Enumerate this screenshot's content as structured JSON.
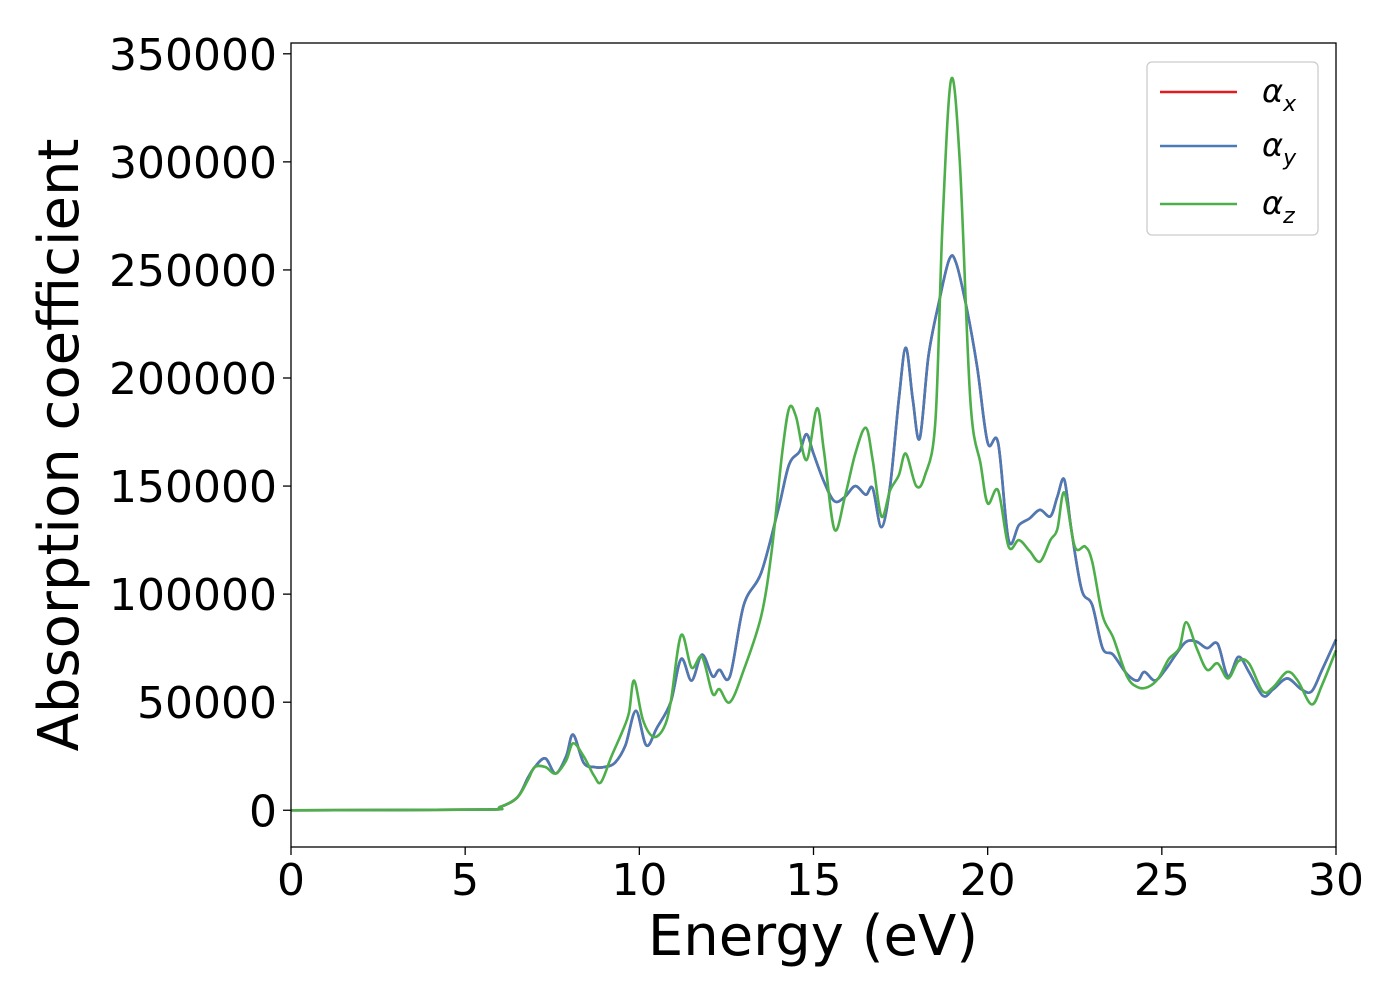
{
  "chart_data": {
    "type": "line",
    "title": "",
    "xlabel": "Energy (eV)",
    "ylabel": "Absorption coefficient",
    "xlim": [
      0,
      30
    ],
    "ylim": [
      -17000,
      355000
    ],
    "xticks": [
      0,
      5,
      10,
      15,
      20,
      25,
      30
    ],
    "yticks": [
      0,
      50000,
      100000,
      150000,
      200000,
      250000,
      300000,
      350000
    ],
    "grid": false,
    "legend_position": "top-right",
    "series": [
      {
        "name": "x",
        "label_base": "α",
        "label_sub": "x",
        "color": "#e41a1c",
        "points": [
          [
            0,
            0
          ],
          [
            5.5,
            300
          ],
          [
            6.0,
            1500
          ],
          [
            6.5,
            6000
          ],
          [
            6.8,
            15000
          ],
          [
            7.0,
            20000
          ],
          [
            7.3,
            24000
          ],
          [
            7.6,
            17000
          ],
          [
            7.9,
            25000
          ],
          [
            8.1,
            35000
          ],
          [
            8.4,
            22000
          ],
          [
            8.7,
            20000
          ],
          [
            9.0,
            20000
          ],
          [
            9.3,
            22000
          ],
          [
            9.6,
            30000
          ],
          [
            9.9,
            46000
          ],
          [
            10.2,
            30000
          ],
          [
            10.5,
            38000
          ],
          [
            10.9,
            50000
          ],
          [
            11.2,
            70000
          ],
          [
            11.5,
            60000
          ],
          [
            11.8,
            72000
          ],
          [
            12.1,
            62000
          ],
          [
            12.3,
            65000
          ],
          [
            12.6,
            62000
          ],
          [
            13.0,
            95000
          ],
          [
            13.5,
            110000
          ],
          [
            14.0,
            140000
          ],
          [
            14.3,
            160000
          ],
          [
            14.6,
            166000
          ],
          [
            14.8,
            174000
          ],
          [
            15.0,
            165000
          ],
          [
            15.3,
            152000
          ],
          [
            15.6,
            143000
          ],
          [
            15.9,
            145000
          ],
          [
            16.2,
            150000
          ],
          [
            16.5,
            146000
          ],
          [
            16.7,
            149000
          ],
          [
            16.95,
            131000
          ],
          [
            17.2,
            150000
          ],
          [
            17.45,
            190000
          ],
          [
            17.65,
            214000
          ],
          [
            17.85,
            190000
          ],
          [
            18.05,
            172000
          ],
          [
            18.3,
            210000
          ],
          [
            18.6,
            235000
          ],
          [
            18.9,
            255000
          ],
          [
            19.1,
            253000
          ],
          [
            19.4,
            232000
          ],
          [
            19.7,
            205000
          ],
          [
            20.0,
            170000
          ],
          [
            20.3,
            170000
          ],
          [
            20.6,
            125000
          ],
          [
            20.9,
            132000
          ],
          [
            21.2,
            135000
          ],
          [
            21.5,
            139000
          ],
          [
            21.8,
            136000
          ],
          [
            22.0,
            145000
          ],
          [
            22.2,
            153000
          ],
          [
            22.4,
            130000
          ],
          [
            22.7,
            102000
          ],
          [
            23.0,
            95000
          ],
          [
            23.3,
            75000
          ],
          [
            23.6,
            72000
          ],
          [
            24.0,
            63000
          ],
          [
            24.3,
            60000
          ],
          [
            24.5,
            64000
          ],
          [
            24.8,
            60000
          ],
          [
            25.1,
            65000
          ],
          [
            25.4,
            72000
          ],
          [
            25.7,
            78000
          ],
          [
            26.0,
            78000
          ],
          [
            26.3,
            75000
          ],
          [
            26.6,
            77000
          ],
          [
            26.9,
            62000
          ],
          [
            27.2,
            71000
          ],
          [
            27.5,
            64000
          ],
          [
            27.9,
            53000
          ],
          [
            28.2,
            56000
          ],
          [
            28.6,
            61000
          ],
          [
            29.0,
            56000
          ],
          [
            29.3,
            55000
          ],
          [
            29.6,
            65000
          ],
          [
            30.0,
            79000
          ]
        ]
      },
      {
        "name": "y",
        "label_base": "α",
        "label_sub": "y",
        "color": "#4a7bb7",
        "points": [
          [
            0,
            0
          ],
          [
            5.5,
            300
          ],
          [
            6.0,
            1500
          ],
          [
            6.5,
            6000
          ],
          [
            6.8,
            15000
          ],
          [
            7.0,
            20000
          ],
          [
            7.3,
            24000
          ],
          [
            7.6,
            17000
          ],
          [
            7.9,
            25000
          ],
          [
            8.1,
            35000
          ],
          [
            8.4,
            22000
          ],
          [
            8.7,
            20000
          ],
          [
            9.0,
            20000
          ],
          [
            9.3,
            22000
          ],
          [
            9.6,
            30000
          ],
          [
            9.9,
            46000
          ],
          [
            10.2,
            30000
          ],
          [
            10.5,
            38000
          ],
          [
            10.9,
            50000
          ],
          [
            11.2,
            70000
          ],
          [
            11.5,
            60000
          ],
          [
            11.8,
            72000
          ],
          [
            12.1,
            62000
          ],
          [
            12.3,
            65000
          ],
          [
            12.6,
            62000
          ],
          [
            13.0,
            95000
          ],
          [
            13.5,
            110000
          ],
          [
            14.0,
            140000
          ],
          [
            14.3,
            160000
          ],
          [
            14.6,
            166000
          ],
          [
            14.8,
            174000
          ],
          [
            15.0,
            165000
          ],
          [
            15.3,
            152000
          ],
          [
            15.6,
            143000
          ],
          [
            15.9,
            145000
          ],
          [
            16.2,
            150000
          ],
          [
            16.5,
            146000
          ],
          [
            16.7,
            149000
          ],
          [
            16.95,
            131000
          ],
          [
            17.2,
            150000
          ],
          [
            17.45,
            190000
          ],
          [
            17.65,
            214000
          ],
          [
            17.85,
            190000
          ],
          [
            18.05,
            172000
          ],
          [
            18.3,
            210000
          ],
          [
            18.6,
            235000
          ],
          [
            18.9,
            255000
          ],
          [
            19.1,
            253000
          ],
          [
            19.4,
            232000
          ],
          [
            19.7,
            205000
          ],
          [
            20.0,
            170000
          ],
          [
            20.3,
            170000
          ],
          [
            20.6,
            125000
          ],
          [
            20.9,
            132000
          ],
          [
            21.2,
            135000
          ],
          [
            21.5,
            139000
          ],
          [
            21.8,
            136000
          ],
          [
            22.0,
            145000
          ],
          [
            22.2,
            153000
          ],
          [
            22.4,
            130000
          ],
          [
            22.7,
            102000
          ],
          [
            23.0,
            95000
          ],
          [
            23.3,
            75000
          ],
          [
            23.6,
            72000
          ],
          [
            24.0,
            63000
          ],
          [
            24.3,
            60000
          ],
          [
            24.5,
            64000
          ],
          [
            24.8,
            60000
          ],
          [
            25.1,
            65000
          ],
          [
            25.4,
            72000
          ],
          [
            25.7,
            78000
          ],
          [
            26.0,
            78000
          ],
          [
            26.3,
            75000
          ],
          [
            26.6,
            77000
          ],
          [
            26.9,
            62000
          ],
          [
            27.2,
            71000
          ],
          [
            27.5,
            64000
          ],
          [
            27.9,
            53000
          ],
          [
            28.2,
            56000
          ],
          [
            28.6,
            61000
          ],
          [
            29.0,
            56000
          ],
          [
            29.3,
            55000
          ],
          [
            29.6,
            65000
          ],
          [
            30.0,
            79000
          ]
        ]
      },
      {
        "name": "z",
        "label_base": "α",
        "label_sub": "z",
        "color": "#4daf4a",
        "points": [
          [
            0,
            0
          ],
          [
            5.5,
            300
          ],
          [
            6.0,
            1500
          ],
          [
            6.5,
            6000
          ],
          [
            6.8,
            14000
          ],
          [
            7.0,
            20000
          ],
          [
            7.3,
            20000
          ],
          [
            7.6,
            17000
          ],
          [
            7.9,
            23000
          ],
          [
            8.1,
            31000
          ],
          [
            8.4,
            25000
          ],
          [
            8.7,
            16000
          ],
          [
            8.9,
            13000
          ],
          [
            9.2,
            25000
          ],
          [
            9.5,
            36000
          ],
          [
            9.7,
            45000
          ],
          [
            9.85,
            60000
          ],
          [
            10.1,
            42000
          ],
          [
            10.4,
            34000
          ],
          [
            10.7,
            38000
          ],
          [
            10.9,
            50000
          ],
          [
            11.2,
            81000
          ],
          [
            11.5,
            66000
          ],
          [
            11.8,
            71000
          ],
          [
            12.1,
            54000
          ],
          [
            12.3,
            56000
          ],
          [
            12.6,
            50000
          ],
          [
            13.0,
            65000
          ],
          [
            13.5,
            90000
          ],
          [
            13.8,
            120000
          ],
          [
            14.1,
            165000
          ],
          [
            14.3,
            186000
          ],
          [
            14.5,
            182000
          ],
          [
            14.8,
            162000
          ],
          [
            15.1,
            186000
          ],
          [
            15.3,
            166000
          ],
          [
            15.6,
            130000
          ],
          [
            15.9,
            145000
          ],
          [
            16.2,
            165000
          ],
          [
            16.5,
            177000
          ],
          [
            16.7,
            162000
          ],
          [
            16.95,
            136000
          ],
          [
            17.2,
            148000
          ],
          [
            17.45,
            155000
          ],
          [
            17.65,
            165000
          ],
          [
            17.95,
            150000
          ],
          [
            18.2,
            155000
          ],
          [
            18.5,
            180000
          ],
          [
            18.7,
            270000
          ],
          [
            18.95,
            338000
          ],
          [
            19.2,
            300000
          ],
          [
            19.5,
            190000
          ],
          [
            19.8,
            160000
          ],
          [
            20.0,
            142000
          ],
          [
            20.3,
            148000
          ],
          [
            20.6,
            122000
          ],
          [
            20.9,
            125000
          ],
          [
            21.2,
            120000
          ],
          [
            21.5,
            115000
          ],
          [
            21.8,
            125000
          ],
          [
            22.0,
            130000
          ],
          [
            22.2,
            147000
          ],
          [
            22.5,
            122000
          ],
          [
            22.8,
            122000
          ],
          [
            23.0,
            115000
          ],
          [
            23.3,
            90000
          ],
          [
            23.6,
            80000
          ],
          [
            24.0,
            62000
          ],
          [
            24.3,
            57000
          ],
          [
            24.6,
            57000
          ],
          [
            24.9,
            61000
          ],
          [
            25.2,
            70000
          ],
          [
            25.5,
            75000
          ],
          [
            25.7,
            87000
          ],
          [
            26.0,
            75000
          ],
          [
            26.3,
            65000
          ],
          [
            26.6,
            68000
          ],
          [
            26.9,
            61000
          ],
          [
            27.2,
            69000
          ],
          [
            27.5,
            68000
          ],
          [
            27.9,
            55000
          ],
          [
            28.2,
            57000
          ],
          [
            28.6,
            64000
          ],
          [
            28.9,
            60000
          ],
          [
            29.3,
            49000
          ],
          [
            29.6,
            58000
          ],
          [
            30.0,
            74000
          ]
        ]
      }
    ]
  }
}
